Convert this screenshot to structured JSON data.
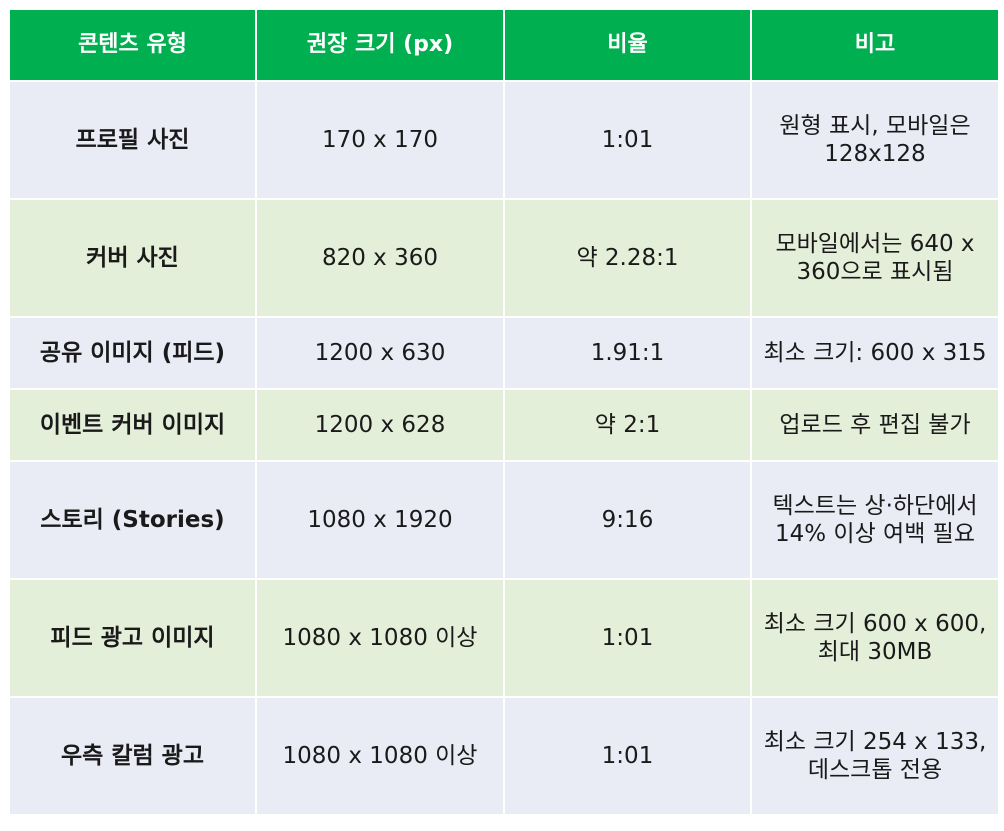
{
  "table": {
    "headers": [
      "콘텐츠 유형",
      "권장 크기 (px)",
      "비율",
      "비고"
    ],
    "rows": [
      {
        "type": "프로필 사진",
        "size": "170 x 170",
        "ratio": "1:01",
        "note": "원형 표시, 모바일은 128x128"
      },
      {
        "type": "커버 사진",
        "size": "820 x 360",
        "ratio": "약 2.28:1",
        "note": "모바일에서는 640 x 360으로 표시됨"
      },
      {
        "type": "공유 이미지 (피드)",
        "size": "1200 x 630",
        "ratio": "1.91:1",
        "note": "최소 크기: 600 x 315"
      },
      {
        "type": "이벤트 커버 이미지",
        "size": "1200 x 628",
        "ratio": "약 2:1",
        "note": "업로드 후 편집 불가"
      },
      {
        "type": "스토리 (Stories)",
        "size": "1080 x 1920",
        "ratio": "9:16",
        "note": "텍스트는 상·하단에서 14% 이상 여백 필요"
      },
      {
        "type": "피드 광고 이미지",
        "size": "1080 x 1080 이상",
        "ratio": "1:01",
        "note": "최소 크기 600 x 600, 최대 30MB"
      },
      {
        "type": "우측 칼럼 광고",
        "size": "1080 x 1080 이상",
        "ratio": "1:01",
        "note": "최소 크기 254 x 133, 데스크톱 전용"
      }
    ]
  },
  "colors": {
    "header_bg": "#00b050",
    "row_odd_bg": "#e9ebf5",
    "row_even_bg": "#e3efd9"
  }
}
